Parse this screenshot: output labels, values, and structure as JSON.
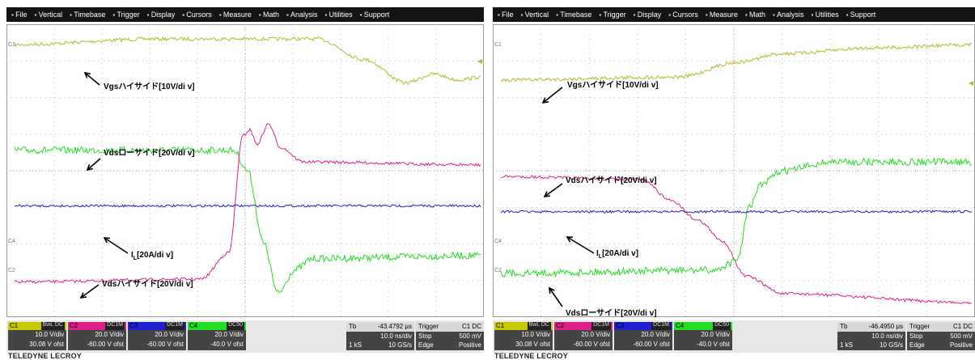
{
  "menu": [
    "File",
    "Vertical",
    "Timebase",
    "Trigger",
    "Display",
    "Cursors",
    "Measure",
    "Math",
    "Analysis",
    "Utilities",
    "Support"
  ],
  "brand": "TELEDYNE LECROY",
  "screens": [
    {
      "side_labels": [
        "C1",
        "C4",
        "C2"
      ],
      "annotations": [
        {
          "text": "Vgsハイサイド[10V/di v]"
        },
        {
          "text": "Vdsローサイド[20V/di v]"
        },
        {
          "text": "I",
          "subscript": "L",
          "suffix": "[20A/di v]"
        },
        {
          "text": "Vdsハイサイド[20V/di v]"
        }
      ],
      "channels": [
        {
          "name": "C1",
          "coupling": "BwL DC",
          "scale": "10.0 V/div",
          "offset": "30.08 V ofst"
        },
        {
          "name": "C2",
          "coupling": "DC1M",
          "scale": "20.0 V/div",
          "offset": "-60.00 V ofst"
        },
        {
          "name": "C3",
          "coupling": "DC1M",
          "scale": "20.0 V/div",
          "offset": "-60.00 V ofst"
        },
        {
          "name": "C4",
          "coupling": "DC50",
          "scale": "20.0 V/div",
          "offset": "-40.0 V ofst"
        }
      ],
      "timebase": {
        "label": "Tb",
        "delay": "-43.4792 µs",
        "per_div": "10.0 ns/div",
        "samples": "1 kS",
        "rate": "10 GS/s"
      },
      "trigger": {
        "label": "Trigger",
        "source": "C1 DC",
        "mode": "Stop",
        "level": "500 mV",
        "type": "Edge",
        "slope": "Positive"
      }
    },
    {
      "side_labels": [
        "C1",
        "C4",
        "C2"
      ],
      "annotations": [
        {
          "text": "Vgsハイサイド[10V/di v]"
        },
        {
          "text": "Vdsハイサイド[20V/di v]"
        },
        {
          "text": "I",
          "subscript": "L",
          "suffix": "[20A/di v]"
        },
        {
          "text": "Vdsローサイド[20V/di v]"
        }
      ],
      "channels": [
        {
          "name": "C1",
          "coupling": "BwL DC",
          "scale": "10.0 V/div",
          "offset": "30.08 V ofst"
        },
        {
          "name": "C2",
          "coupling": "DC1M",
          "scale": "20.0 V/div",
          "offset": "-60.00 V ofst"
        },
        {
          "name": "C3",
          "coupling": "DC1M",
          "scale": "20.0 V/div",
          "offset": "-60.00 V ofst"
        },
        {
          "name": "C4",
          "coupling": "DC50",
          "scale": "20.0 V/div",
          "offset": "-40.0 V ofst"
        }
      ],
      "timebase": {
        "label": "Tb",
        "delay": "-46.4950 µs",
        "per_div": "10.0 ns/div",
        "samples": "1 kS",
        "rate": "10 GS/s"
      },
      "trigger": {
        "label": "Trigger",
        "source": "C1 DC",
        "mode": "Stop",
        "level": "500 mV",
        "type": "Edge",
        "slope": "Positive"
      }
    }
  ]
}
